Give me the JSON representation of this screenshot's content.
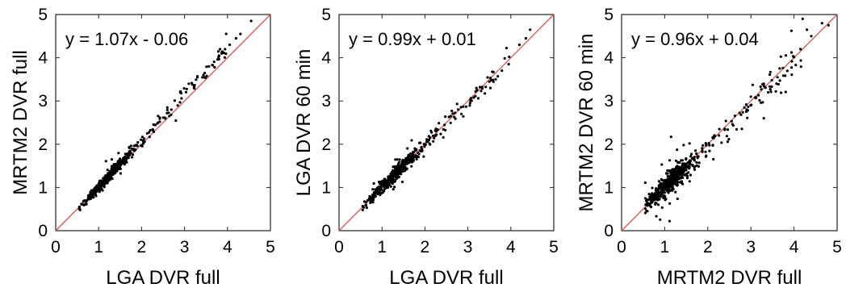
{
  "chart_data": [
    {
      "type": "scatter",
      "xlabel": "LGA DVR full",
      "ylabel": "MRTM2 DVR full",
      "xlim": [
        0,
        5
      ],
      "ylim": [
        0,
        5
      ],
      "xticks": [
        "0",
        "1",
        "2",
        "3",
        "4",
        "5"
      ],
      "yticks": [
        "0",
        "1",
        "2",
        "3",
        "4",
        "5"
      ],
      "annotation": "y = 1.07x - 0.06",
      "identity_line": {
        "x": [
          0,
          5
        ],
        "y": [
          0,
          5
        ],
        "color": "#e05050"
      },
      "fit": {
        "slope": 1.07,
        "intercept": -0.06,
        "spread": 0.06,
        "outlier_rate": 0.04
      },
      "x_distribution": {
        "min": 0.55,
        "max": 4.6,
        "n": 520,
        "bulk_center": 1.15,
        "bulk_spread": 0.28
      },
      "series": [
        {
          "points": [
            [
              4.55,
              4.85
            ],
            [
              4.3,
              4.55
            ],
            [
              4.2,
              4.45
            ],
            [
              4.05,
              4.3
            ],
            [
              3.8,
              4.05
            ],
            [
              3.3,
              3.55
            ],
            [
              3.1,
              3.4
            ],
            [
              2.9,
              3.2
            ],
            [
              2.6,
              2.85
            ],
            [
              0.55,
              0.5
            ],
            [
              0.6,
              0.62
            ]
          ]
        }
      ]
    },
    {
      "type": "scatter",
      "xlabel": "LGA DVR full",
      "ylabel": "LGA DVR 60 min",
      "xlim": [
        0,
        5
      ],
      "ylim": [
        0,
        5
      ],
      "xticks": [
        "0",
        "1",
        "2",
        "3",
        "4",
        "5"
      ],
      "yticks": [
        "0",
        "1",
        "2",
        "3",
        "4",
        "5"
      ],
      "annotation": "y = 0.99x + 0.01",
      "identity_line": {
        "x": [
          0,
          5
        ],
        "y": [
          0,
          5
        ],
        "color": "#e05050"
      },
      "fit": {
        "slope": 0.99,
        "intercept": 0.01,
        "spread": 0.08,
        "outlier_rate": 0.05
      },
      "x_distribution": {
        "min": 0.55,
        "max": 4.6,
        "n": 480,
        "bulk_center": 1.2,
        "bulk_spread": 0.35
      },
      "series": [
        {
          "points": [
            [
              4.45,
              4.65
            ],
            [
              4.35,
              4.45
            ],
            [
              4.2,
              4.3
            ],
            [
              3.95,
              3.85
            ],
            [
              3.2,
              3.3
            ],
            [
              3.05,
              2.95
            ],
            [
              2.85,
              2.7
            ],
            [
              2.6,
              2.65
            ],
            [
              0.55,
              0.48
            ]
          ]
        }
      ]
    },
    {
      "type": "scatter",
      "xlabel": "MRTM2 DVR full",
      "ylabel": "MRTM2 DVR 60 min",
      "xlim": [
        0,
        5
      ],
      "ylim": [
        0,
        5
      ],
      "xticks": [
        "0",
        "1",
        "2",
        "3",
        "4",
        "5"
      ],
      "yticks": [
        "0",
        "1",
        "2",
        "3",
        "4",
        "5"
      ],
      "annotation": "y = 0.96x + 0.04",
      "identity_line": {
        "x": [
          0,
          5
        ],
        "y": [
          0,
          5
        ],
        "color": "#e05050"
      },
      "fit": {
        "slope": 0.96,
        "intercept": 0.04,
        "spread": 0.12,
        "outlier_rate": 0.1
      },
      "x_distribution": {
        "min": 0.55,
        "max": 4.8,
        "n": 560,
        "bulk_center": 1.05,
        "bulk_spread": 0.3
      },
      "series": [
        {
          "points": [
            [
              4.8,
              4.75
            ],
            [
              4.65,
              4.8
            ],
            [
              4.2,
              4.9
            ],
            [
              4.3,
              4.65
            ],
            [
              4.4,
              4.5
            ],
            [
              4.15,
              4.2
            ],
            [
              3.4,
              3.2
            ],
            [
              3.3,
              3.4
            ],
            [
              3.0,
              3.1
            ],
            [
              2.9,
              2.8
            ],
            [
              3.3,
              2.6
            ],
            [
              0.6,
              0.65
            ],
            [
              0.55,
              0.75
            ]
          ]
        }
      ]
    }
  ]
}
